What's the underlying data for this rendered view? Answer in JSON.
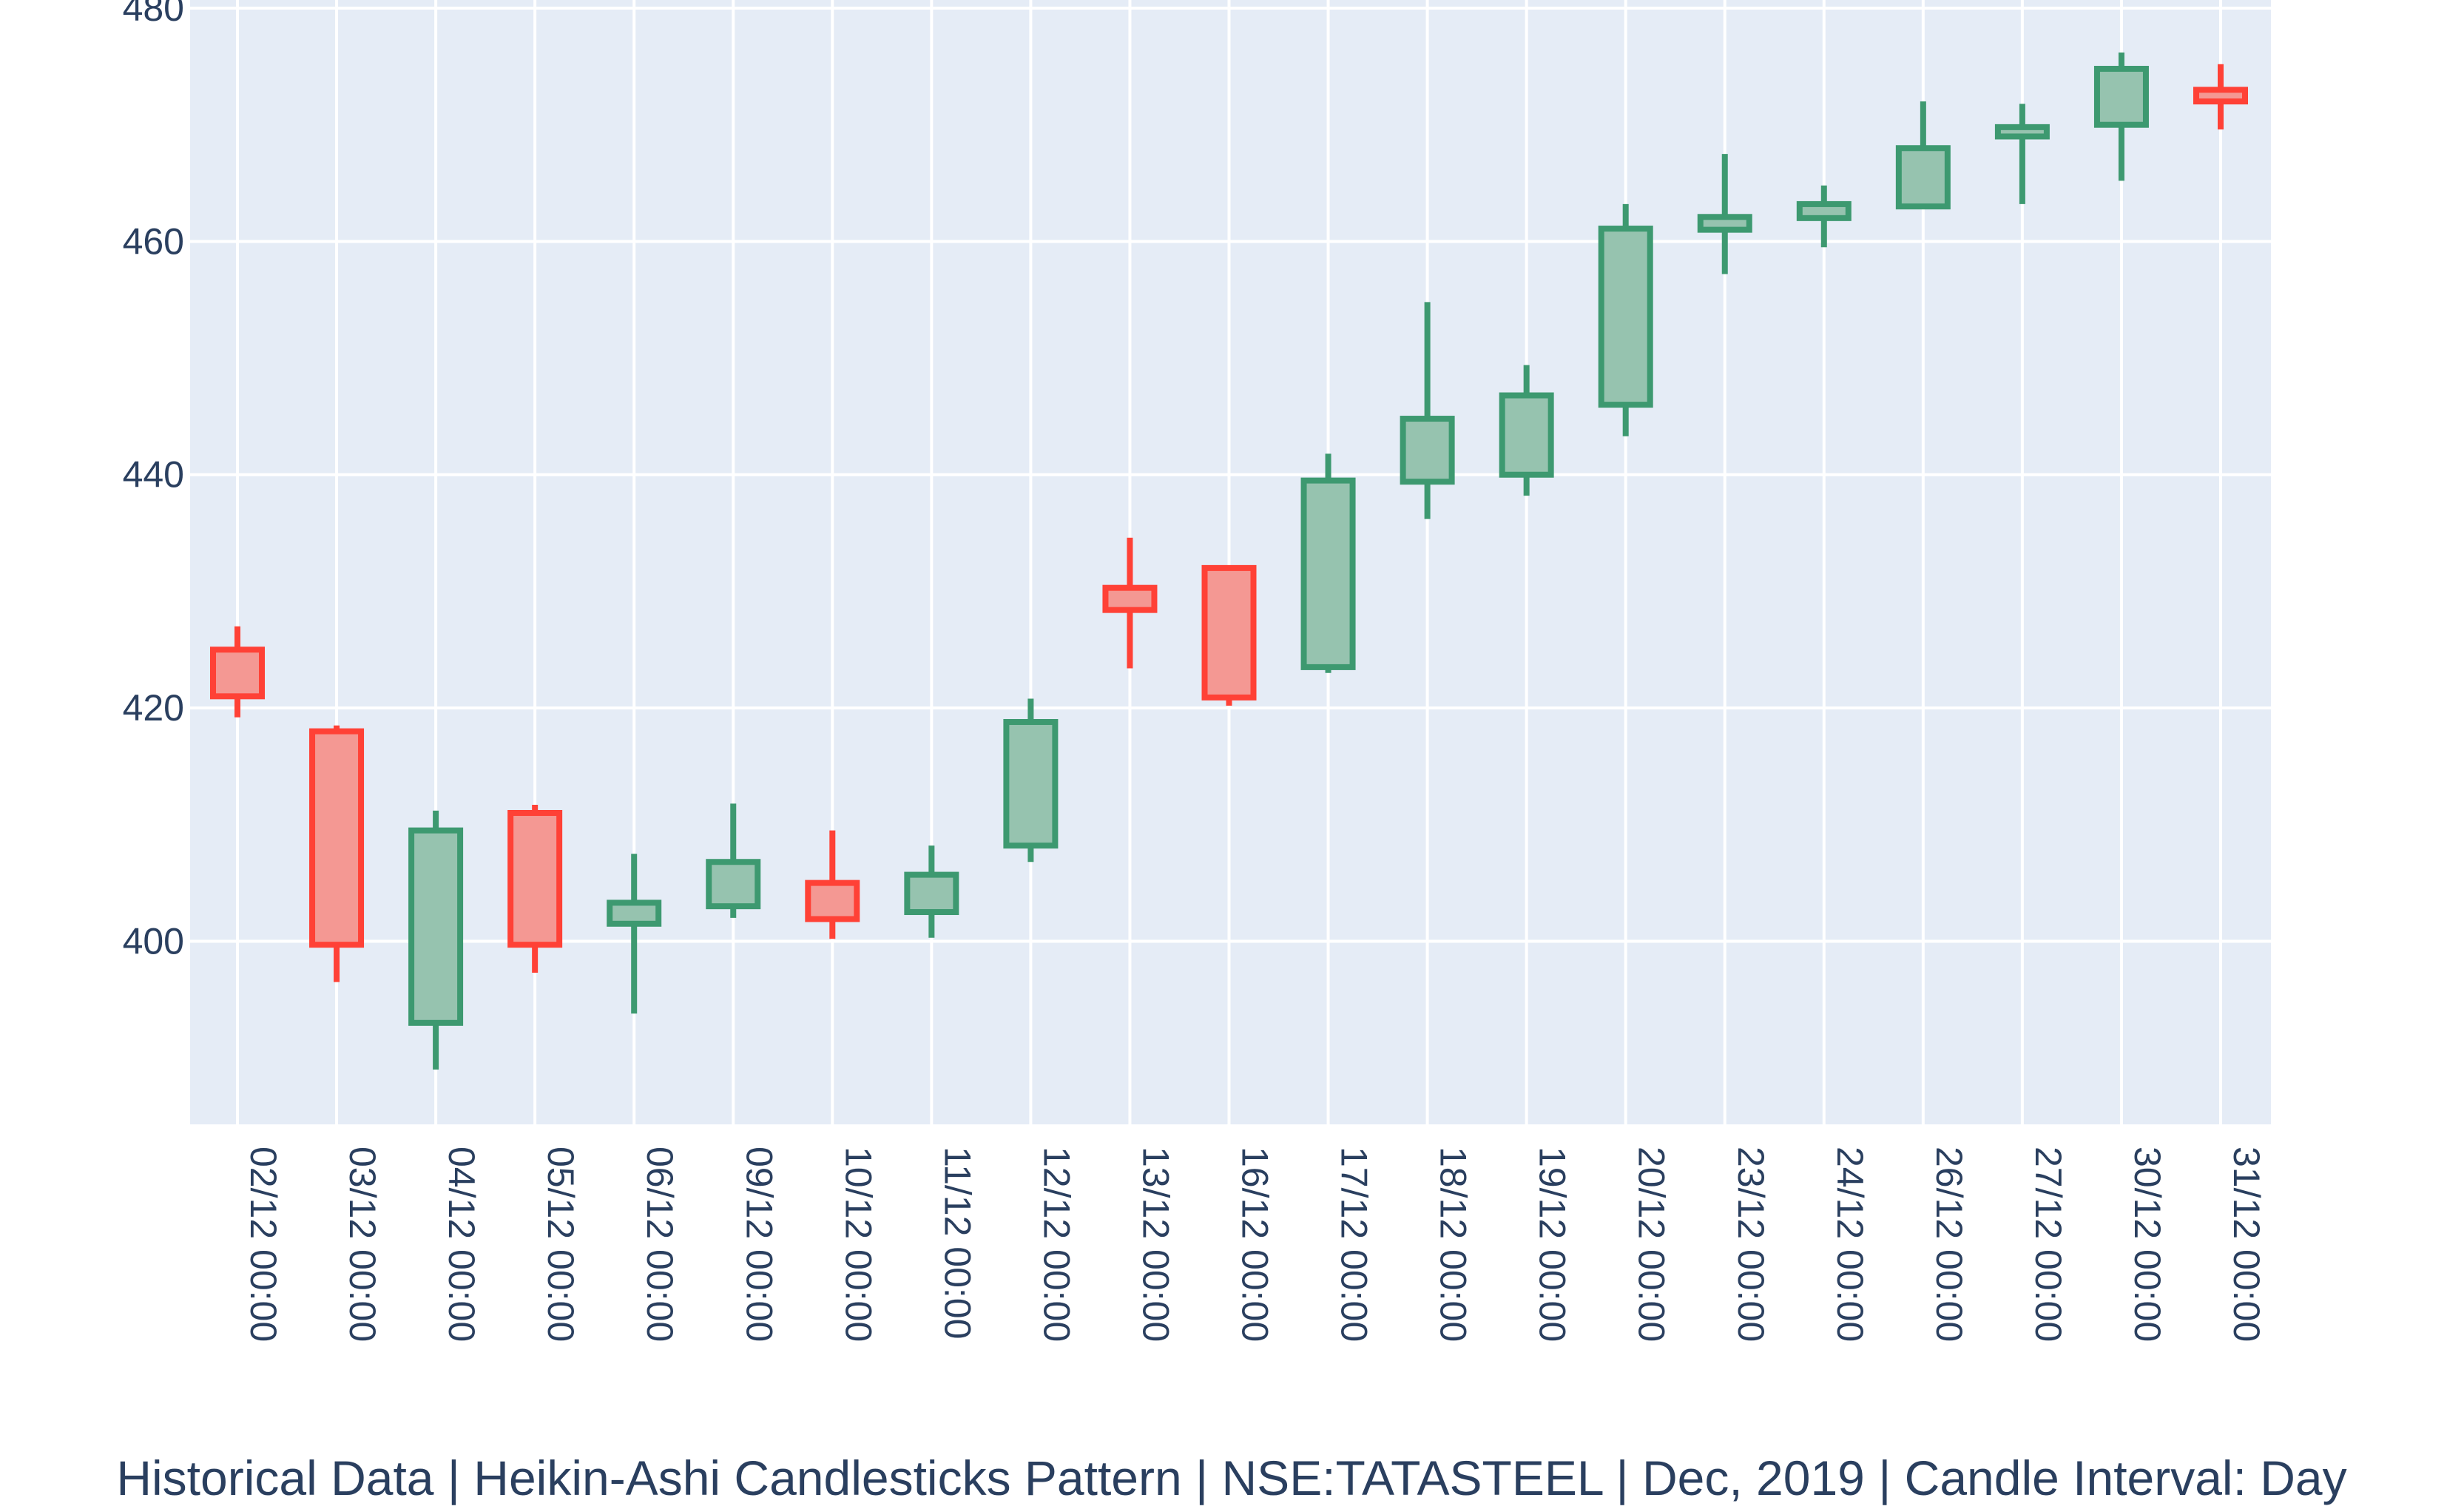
{
  "caption": "Historical Data | Heikin-Ashi Candlesticks Pattern | NSE:TATASTEEL | Dec, 2019 | Candle Interval: Day",
  "colors": {
    "background": "#ffffff",
    "plot_background": "#e5ecf6",
    "grid": "#ffffff",
    "text": "#2a3f5f",
    "increasing_line": "#3d9970",
    "increasing_fill": "#96c3af",
    "decreasing_line": "#ff4136",
    "decreasing_fill": "#f49893"
  },
  "chart_data": {
    "type": "candlestick",
    "title": "",
    "xlabel": "",
    "ylabel": "",
    "ylim": [
      384.3,
      480.7
    ],
    "yticks": [
      400,
      420,
      440,
      460,
      480
    ],
    "grid": true,
    "legend": "none",
    "categories": [
      "02/12 00:00",
      "03/12 00:00",
      "04/12 00:00",
      "05/12 00:00",
      "06/12 00:00",
      "09/12 00:00",
      "10/12 00:00",
      "11/12 00:00",
      "12/12 00:00",
      "13/12 00:00",
      "16/12 00:00",
      "17/12 00:00",
      "18/12 00:00",
      "19/12 00:00",
      "20/12 00:00",
      "23/12 00:00",
      "24/12 00:00",
      "26/12 00:00",
      "27/12 00:00",
      "30/12 00:00",
      "31/12 00:00"
    ],
    "open": [
      425.0,
      418.0,
      393.0,
      411.0,
      401.5,
      403.0,
      405.0,
      402.5,
      408.2,
      430.3,
      432.0,
      423.5,
      439.4,
      440.0,
      446.0,
      461.0,
      462.0,
      463.0,
      469.0,
      470.0,
      473.0
    ],
    "high": [
      427.0,
      418.5,
      411.2,
      411.7,
      407.5,
      411.8,
      409.5,
      408.2,
      420.8,
      434.6,
      432.0,
      441.8,
      454.8,
      449.4,
      463.2,
      467.5,
      464.8,
      472.0,
      471.8,
      476.2,
      475.2
    ],
    "low": [
      419.2,
      396.5,
      389.0,
      397.3,
      393.8,
      402.0,
      400.2,
      400.3,
      406.8,
      423.4,
      420.2,
      423.0,
      436.2,
      438.2,
      443.3,
      457.2,
      459.5,
      463.0,
      463.2,
      465.2,
      469.6
    ],
    "close": [
      421.0,
      399.7,
      409.5,
      399.7,
      403.3,
      406.8,
      401.9,
      405.7,
      418.8,
      428.4,
      420.9,
      439.5,
      444.8,
      446.8,
      461.1,
      462.1,
      463.2,
      468.0,
      469.8,
      474.8,
      472.0
    ]
  }
}
